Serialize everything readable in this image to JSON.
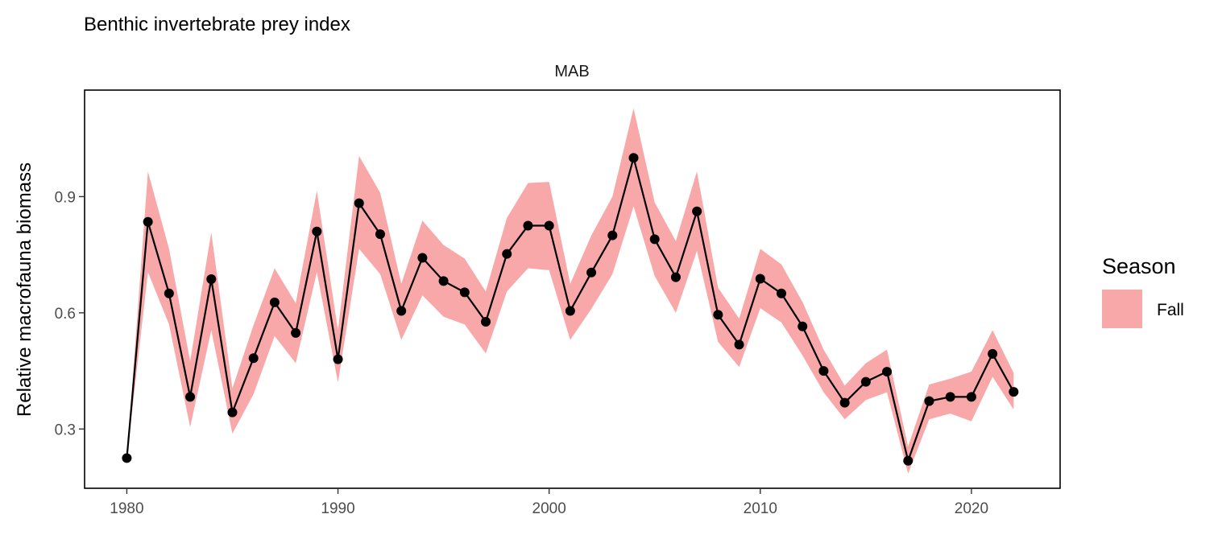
{
  "chart_data": {
    "type": "line",
    "title": "Benthic invertebrate prey index",
    "facet": "MAB",
    "xlabel": "",
    "ylabel": "Relative macrofauna biomass",
    "xlim": [
      1978,
      2024.2
    ],
    "ylim": [
      0.147,
      1.175
    ],
    "x_ticks": [
      1980,
      1990,
      2000,
      2010,
      2020
    ],
    "y_ticks": [
      0.3,
      0.6,
      0.9
    ],
    "x_tick_labels": [
      "1980",
      "1990",
      "2000",
      "2010",
      "2020"
    ],
    "y_tick_labels": [
      "0.3",
      "0.6",
      "0.9"
    ],
    "grid": false,
    "legend": {
      "title": "Season",
      "position": "right",
      "entries": [
        {
          "label": "Fall",
          "color": "#F8A8A8"
        }
      ]
    },
    "colors": {
      "ribbon": "#F8A8A8",
      "line": "#000000",
      "points": "#000000"
    },
    "x": [
      1980,
      1981,
      1982,
      1983,
      1984,
      1985,
      1986,
      1987,
      1988,
      1989,
      1990,
      1991,
      1992,
      1993,
      1994,
      1995,
      1996,
      1997,
      1998,
      1999,
      2000,
      2001,
      2002,
      2003,
      2004,
      2005,
      2006,
      2007,
      2008,
      2009,
      2010,
      2011,
      2012,
      2013,
      2014,
      2015,
      2016,
      2017,
      2018,
      2019,
      2020,
      2021,
      2022
    ],
    "series": [
      {
        "values": [
          0.225,
          0.835,
          0.65,
          0.383,
          0.687,
          0.343,
          0.483,
          0.627,
          0.548,
          0.81,
          0.48,
          0.883,
          0.803,
          0.605,
          0.742,
          0.682,
          0.653,
          0.577,
          0.752,
          0.825,
          0.825,
          0.605,
          0.704,
          0.8,
          1.0,
          0.79,
          0.692,
          0.862,
          0.595,
          0.518,
          0.688,
          0.65,
          0.565,
          0.45,
          0.368,
          0.422,
          0.448,
          0.218,
          0.372,
          0.383,
          0.383,
          0.494,
          0.396
        ],
        "lower": [
          0.225,
          0.705,
          0.57,
          0.305,
          0.555,
          0.288,
          0.39,
          0.54,
          0.47,
          0.705,
          0.42,
          0.765,
          0.7,
          0.53,
          0.645,
          0.59,
          0.57,
          0.495,
          0.655,
          0.715,
          0.71,
          0.53,
          0.61,
          0.7,
          0.875,
          0.695,
          0.6,
          0.76,
          0.525,
          0.46,
          0.612,
          0.575,
          0.49,
          0.395,
          0.325,
          0.375,
          0.395,
          0.185,
          0.325,
          0.34,
          0.32,
          0.435,
          0.35
        ],
        "upper": [
          0.225,
          0.965,
          0.765,
          0.475,
          0.808,
          0.405,
          0.568,
          0.715,
          0.625,
          0.915,
          0.555,
          1.005,
          0.91,
          0.675,
          0.838,
          0.775,
          0.74,
          0.655,
          0.845,
          0.935,
          0.938,
          0.675,
          0.8,
          0.9,
          1.128,
          0.885,
          0.785,
          0.965,
          0.665,
          0.585,
          0.765,
          0.725,
          0.628,
          0.505,
          0.412,
          0.47,
          0.505,
          0.255,
          0.415,
          0.43,
          0.448,
          0.555,
          0.445
        ]
      }
    ]
  }
}
